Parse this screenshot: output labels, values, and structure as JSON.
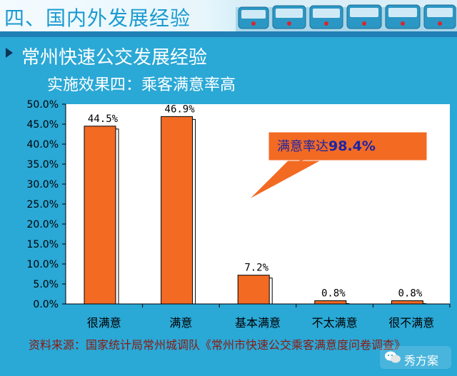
{
  "header": {
    "title": "四、国内外发展经验"
  },
  "section": {
    "title": "常州快速公交发展经验"
  },
  "subtitle": "实施效果四：乘客满意率高",
  "callout": {
    "prefix": "满意率达",
    "value": "98.4%"
  },
  "source_note": "资料来源：国家统计局常州城调队《常州市快速公交乘客满意度问卷调查》",
  "watermark": "秀方案",
  "colors": {
    "bar": "#f36a23",
    "plot_bg": "#ffffff",
    "background": "#2aa8d6",
    "callout_bg": "#f36a23",
    "callout_text": "#1a24a8"
  },
  "chart_data": {
    "type": "bar",
    "categories": [
      "很满意",
      "满意",
      "基本满意",
      "不太满意",
      "很不满意"
    ],
    "values": [
      44.5,
      46.9,
      7.2,
      0.8,
      0.8
    ],
    "data_labels": [
      "44.5%",
      "46.9%",
      "7.2%",
      "0.8%",
      "0.8%"
    ],
    "ylim": [
      0,
      50
    ],
    "yticks": [
      0,
      5,
      10,
      15,
      20,
      25,
      30,
      35,
      40,
      45,
      50
    ],
    "ytick_labels": [
      "0.0%",
      "5.0%",
      "10.0%",
      "15.0%",
      "20.0%",
      "25.0%",
      "30.0%",
      "35.0%",
      "40.0%",
      "45.0%",
      "50.0%"
    ],
    "grid": false,
    "legend": "none"
  }
}
